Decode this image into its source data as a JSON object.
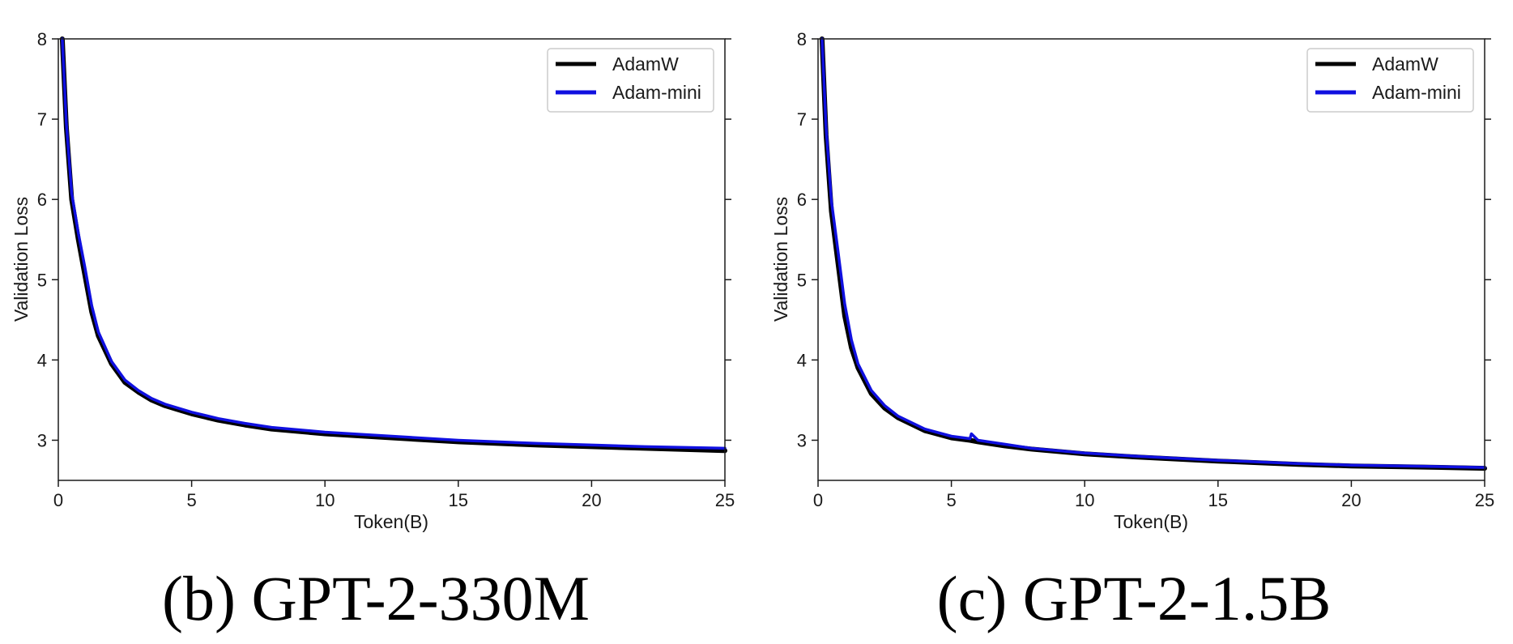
{
  "colors": {
    "adamw": "#000000",
    "adam_mini": "#1010e0"
  },
  "panels": [
    {
      "caption": "(b) GPT-2-330M",
      "xlabel": "Token(B)",
      "ylabel": "Validation Loss",
      "legend": [
        "AdamW",
        "Adam-mini"
      ],
      "xticks": [
        "0",
        "5",
        "10",
        "15",
        "20",
        "25"
      ],
      "yticks": [
        "3",
        "4",
        "5",
        "6",
        "7",
        "8"
      ]
    },
    {
      "caption": "(c) GPT-2-1.5B",
      "xlabel": "Token(B)",
      "ylabel": "Validation Loss",
      "legend": [
        "AdamW",
        "Adam-mini"
      ],
      "xticks": [
        "0",
        "5",
        "10",
        "15",
        "20",
        "25"
      ],
      "yticks": [
        "3",
        "4",
        "5",
        "6",
        "7",
        "8"
      ]
    }
  ],
  "chart_data": [
    {
      "type": "line",
      "xlabel": "Token(B)",
      "ylabel": "Validation Loss",
      "xlim": [
        0,
        25
      ],
      "ylim": [
        2.5,
        8
      ],
      "legend_position": "top-right",
      "grid": false,
      "series": [
        {
          "name": "AdamW",
          "x": [
            0.15,
            0.3,
            0.5,
            0.75,
            1.0,
            1.25,
            1.5,
            2.0,
            2.5,
            3.0,
            3.5,
            4.0,
            5.0,
            6.0,
            7.0,
            8.0,
            10.0,
            12.0,
            15.0,
            18.0,
            20.0,
            22.0,
            25.0
          ],
          "y": [
            8.0,
            6.9,
            6.0,
            5.5,
            5.05,
            4.6,
            4.3,
            3.95,
            3.72,
            3.6,
            3.5,
            3.43,
            3.33,
            3.25,
            3.19,
            3.14,
            3.08,
            3.04,
            2.98,
            2.94,
            2.92,
            2.9,
            2.87
          ]
        },
        {
          "name": "Adam-mini",
          "x": [
            0.15,
            0.3,
            0.5,
            0.75,
            1.0,
            1.25,
            1.5,
            2.0,
            2.5,
            3.0,
            3.5,
            4.0,
            5.0,
            6.0,
            7.0,
            8.0,
            10.0,
            12.0,
            15.0,
            18.0,
            20.0,
            22.0,
            25.0
          ],
          "y": [
            8.0,
            6.95,
            6.08,
            5.58,
            5.15,
            4.68,
            4.35,
            3.98,
            3.75,
            3.62,
            3.52,
            3.45,
            3.35,
            3.27,
            3.21,
            3.16,
            3.1,
            3.06,
            3.0,
            2.96,
            2.94,
            2.92,
            2.9
          ]
        }
      ]
    },
    {
      "type": "line",
      "xlabel": "Token(B)",
      "ylabel": "Validation Loss",
      "xlim": [
        0,
        25
      ],
      "ylim": [
        2.5,
        8
      ],
      "legend_position": "top-right",
      "grid": false,
      "series": [
        {
          "name": "AdamW",
          "x": [
            0.15,
            0.3,
            0.5,
            0.75,
            1.0,
            1.25,
            1.5,
            2.0,
            2.5,
            3.0,
            4.0,
            5.0,
            5.7,
            6.0,
            7.0,
            8.0,
            10.0,
            12.0,
            15.0,
            18.0,
            20.0,
            22.0,
            25.0
          ],
          "y": [
            8.0,
            6.8,
            5.85,
            5.2,
            4.55,
            4.15,
            3.9,
            3.58,
            3.4,
            3.28,
            3.12,
            3.03,
            3.0,
            2.98,
            2.93,
            2.89,
            2.83,
            2.79,
            2.74,
            2.7,
            2.68,
            2.67,
            2.65
          ]
        },
        {
          "name": "Adam-mini",
          "x": [
            0.15,
            0.3,
            0.5,
            0.75,
            1.0,
            1.25,
            1.5,
            2.0,
            2.5,
            3.0,
            4.0,
            5.0,
            5.7,
            5.75,
            6.0,
            7.0,
            8.0,
            10.0,
            12.0,
            15.0,
            18.0,
            20.0,
            22.0,
            25.0
          ],
          "y": [
            8.0,
            6.9,
            5.98,
            5.35,
            4.7,
            4.25,
            3.95,
            3.62,
            3.43,
            3.3,
            3.14,
            3.05,
            3.02,
            3.08,
            3.0,
            2.95,
            2.9,
            2.84,
            2.8,
            2.75,
            2.71,
            2.69,
            2.68,
            2.66
          ]
        }
      ]
    }
  ]
}
